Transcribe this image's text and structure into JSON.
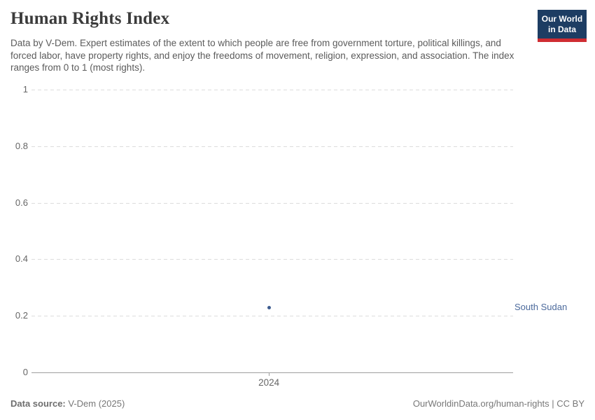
{
  "header": {
    "title": "Human Rights Index",
    "logo": {
      "line1": "Our World",
      "line2": "in Data"
    }
  },
  "subtitle": "Data by V-Dem. Expert estimates of the extent to which people are free from government torture, political killings, and forced labor, have property rights, and enjoy the freedoms of movement, religion, expression, and association. The index ranges from 0 to 1 (most rights).",
  "chart_data": {
    "type": "scatter",
    "title": "Human Rights Index",
    "xlabel": "",
    "ylabel": "",
    "ylim": [
      0,
      1
    ],
    "yticks": [
      0,
      0.2,
      0.4,
      0.6,
      0.8,
      1
    ],
    "xticks": [
      2024
    ],
    "xtick_fractions": [
      0.493
    ],
    "grid": "horizontal-dashed",
    "legend_position": "right-inline-label",
    "series": [
      {
        "name": "South Sudan",
        "color": "#3d5c8f",
        "label_color": "#4c6a9c",
        "points": [
          {
            "x": 2024,
            "y": 0.23
          }
        ]
      }
    ]
  },
  "footer": {
    "source_label": "Data source:",
    "source_value": " V-Dem (2025)",
    "credit": "OurWorldinData.org/human-rights | CC BY"
  },
  "colors": {
    "accent_navy": "#1d3d63",
    "accent_red": "#cf2c32",
    "grid": "#dcdcdc",
    "axis": "#9e9e9e",
    "tick_label": "#666666"
  }
}
